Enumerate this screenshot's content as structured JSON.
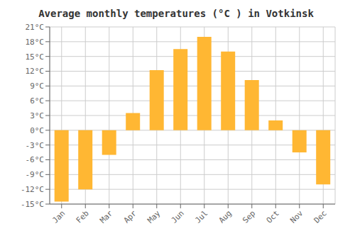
{
  "chart_data": {
    "type": "bar",
    "title": "Average monthly temperatures (°C ) in Votkinsk",
    "categories": [
      "Jan",
      "Feb",
      "Mar",
      "Apr",
      "May",
      "Jun",
      "Jul",
      "Aug",
      "Sep",
      "Oct",
      "Nov",
      "Dec"
    ],
    "values": [
      -14.5,
      -12.0,
      -5.0,
      3.5,
      12.2,
      16.5,
      19.0,
      16.0,
      10.2,
      2.0,
      -4.5,
      -11.0
    ],
    "color": "#FFB733",
    "ylim": [
      -15,
      21
    ],
    "yticks": [
      {
        "value": -15,
        "label": "-15°C"
      },
      {
        "value": -12,
        "label": "-12°C"
      },
      {
        "value": -9,
        "label": "-9°C"
      },
      {
        "value": -6,
        "label": "-6°C"
      },
      {
        "value": -3,
        "label": "-3°C"
      },
      {
        "value": 0,
        "label": "0°C"
      },
      {
        "value": 3,
        "label": "3°C"
      },
      {
        "value": 6,
        "label": "6°C"
      },
      {
        "value": 9,
        "label": "9°C"
      },
      {
        "value": 12,
        "label": "12°C"
      },
      {
        "value": 15,
        "label": "15°C"
      },
      {
        "value": 18,
        "label": "18°C"
      },
      {
        "value": 21,
        "label": "21°C"
      }
    ],
    "grid": true
  }
}
